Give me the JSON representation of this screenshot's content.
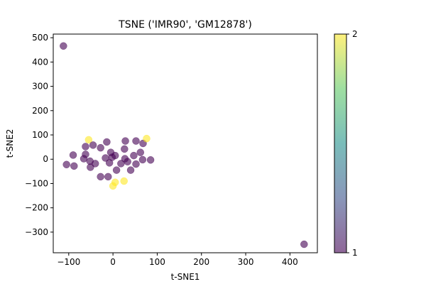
{
  "chart_data": {
    "type": "scatter",
    "title": "TSNE ('IMR90', 'GM12878')",
    "xlabel": "t-SNE1",
    "ylabel": "t-SNE2",
    "xlim": [
      -135,
      462
    ],
    "ylim": [
      -385,
      515
    ],
    "xticks": [
      -100,
      0,
      100,
      200,
      300,
      400
    ],
    "yticks": [
      -300,
      -200,
      -100,
      0,
      100,
      200,
      300,
      400,
      500
    ],
    "grid": false,
    "marker_alpha": 0.6,
    "colorbar": {
      "colormap": "viridis",
      "range": [
        1,
        2
      ],
      "ticks": [
        1,
        2
      ],
      "color_low": "#440154",
      "color_mid": "#21918c",
      "color_high": "#fde725"
    },
    "points": [
      {
        "x": -112,
        "y": 466,
        "c": 1
      },
      {
        "x": 432,
        "y": -350,
        "c": 1
      },
      {
        "x": -105,
        "y": -22,
        "c": 1
      },
      {
        "x": -90,
        "y": 17,
        "c": 1
      },
      {
        "x": -88,
        "y": -28,
        "c": 1
      },
      {
        "x": -66,
        "y": 2,
        "c": 1
      },
      {
        "x": -62,
        "y": 52,
        "c": 1
      },
      {
        "x": -62,
        "y": 20,
        "c": 1
      },
      {
        "x": -55,
        "y": 80,
        "c": 2
      },
      {
        "x": -52,
        "y": -8,
        "c": 1
      },
      {
        "x": -51,
        "y": -33,
        "c": 1
      },
      {
        "x": -45,
        "y": 58,
        "c": 1
      },
      {
        "x": -40,
        "y": -18,
        "c": 1
      },
      {
        "x": -28,
        "y": 47,
        "c": 1
      },
      {
        "x": -28,
        "y": -72,
        "c": 1
      },
      {
        "x": -17,
        "y": 5,
        "c": 1
      },
      {
        "x": -14,
        "y": 71,
        "c": 1
      },
      {
        "x": -11,
        "y": -72,
        "c": 1
      },
      {
        "x": -8,
        "y": -15,
        "c": 1
      },
      {
        "x": -5,
        "y": 28,
        "c": 1
      },
      {
        "x": -2,
        "y": 8,
        "c": 1
      },
      {
        "x": 0,
        "y": -110,
        "c": 2
      },
      {
        "x": 5,
        "y": -95,
        "c": 2
      },
      {
        "x": 5,
        "y": 15,
        "c": 1
      },
      {
        "x": 8,
        "y": -45,
        "c": 1
      },
      {
        "x": 18,
        "y": -18,
        "c": 1
      },
      {
        "x": 25,
        "y": -90,
        "c": 2
      },
      {
        "x": 26,
        "y": 42,
        "c": 1
      },
      {
        "x": 27,
        "y": 2,
        "c": 1
      },
      {
        "x": 28,
        "y": 75,
        "c": 1
      },
      {
        "x": 33,
        "y": -10,
        "c": 1
      },
      {
        "x": 40,
        "y": -45,
        "c": 1
      },
      {
        "x": 47,
        "y": 15,
        "c": 1
      },
      {
        "x": 52,
        "y": 75,
        "c": 1
      },
      {
        "x": 52,
        "y": -20,
        "c": 1
      },
      {
        "x": 62,
        "y": 28,
        "c": 1
      },
      {
        "x": 67,
        "y": -2,
        "c": 1
      },
      {
        "x": 68,
        "y": 65,
        "c": 1
      },
      {
        "x": 76,
        "y": 85,
        "c": 2
      },
      {
        "x": 85,
        "y": -3,
        "c": 1
      }
    ]
  }
}
